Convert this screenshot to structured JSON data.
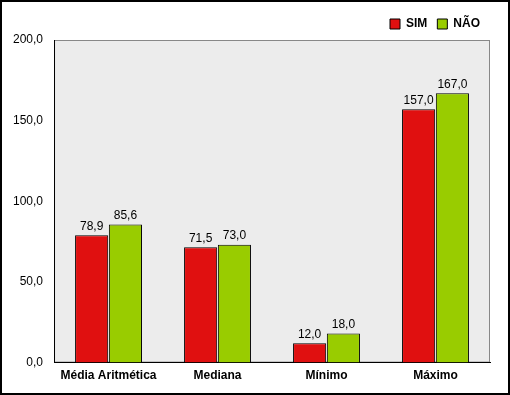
{
  "chart_data": {
    "type": "bar",
    "categories": [
      "Média Aritmética",
      "Mediana",
      "Mínimo",
      "Máximo"
    ],
    "series": [
      {
        "name": "SIM",
        "color": "#e01010",
        "values": [
          78.9,
          71.5,
          12.0,
          157.0
        ],
        "value_labels": [
          "78,9",
          "71,5",
          "12,0",
          "157,0"
        ]
      },
      {
        "name": "NÃO",
        "color": "#99cc00",
        "values": [
          85.6,
          73.0,
          18.0,
          167.0
        ],
        "value_labels": [
          "85,6",
          "73,0",
          "18,0",
          "167,0"
        ]
      }
    ],
    "ylim": [
      0,
      200
    ],
    "yticks": [
      {
        "value": 0,
        "label": "0,0"
      },
      {
        "value": 50,
        "label": "50,0"
      },
      {
        "value": 100,
        "label": "100,0"
      },
      {
        "value": 150,
        "label": "150,0"
      },
      {
        "value": 200,
        "label": "200,0"
      }
    ],
    "grid": false,
    "legend": "upper right",
    "data_labels": true
  }
}
